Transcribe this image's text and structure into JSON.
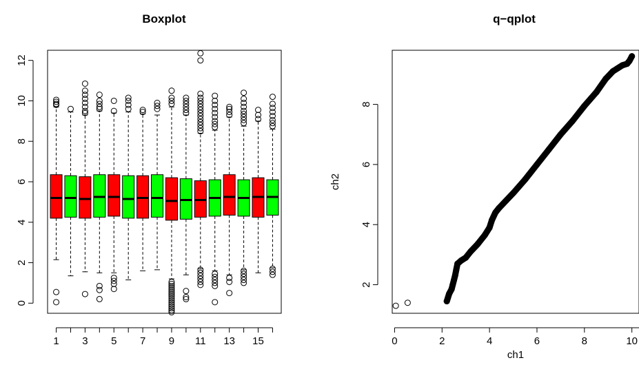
{
  "chart_data": [
    {
      "type": "box",
      "title": "Boxplot",
      "xlabel": "",
      "ylabel": "",
      "ylim": [
        -0.5,
        12.5
      ],
      "yticks": [
        0,
        2,
        4,
        6,
        8,
        10,
        12
      ],
      "xticks": [
        1,
        3,
        5,
        7,
        9,
        11,
        13,
        15
      ],
      "colors": [
        "#ff0000",
        "#00ff00"
      ],
      "boxes": [
        {
          "x": 1,
          "color": "#ff0000",
          "q1": 4.2,
          "median": 5.2,
          "q3": 6.35,
          "whisker_low": 2.15,
          "whisker_high": 9.7,
          "outliers": [
            0.55,
            0.05,
            9.8,
            9.95,
            10.05,
            9.85
          ]
        },
        {
          "x": 2,
          "color": "#00ff00",
          "q1": 4.25,
          "median": 5.2,
          "q3": 6.3,
          "whisker_low": 1.35,
          "whisker_high": 9.45,
          "outliers": [
            9.6
          ]
        },
        {
          "x": 3,
          "color": "#ff0000",
          "q1": 4.2,
          "median": 5.15,
          "q3": 6.25,
          "whisker_low": 1.55,
          "whisker_high": 9.3,
          "outliers": [
            0.45,
            9.4,
            9.5,
            9.7,
            9.9,
            10.1,
            10.3,
            10.5,
            10.85
          ]
        },
        {
          "x": 4,
          "color": "#00ff00",
          "q1": 4.25,
          "median": 5.25,
          "q3": 6.35,
          "whisker_low": 1.5,
          "whisker_high": 9.5,
          "outliers": [
            0.2,
            0.65,
            0.85,
            9.6,
            9.7,
            9.85,
            10.0,
            10.3
          ]
        },
        {
          "x": 5,
          "color": "#ff0000",
          "q1": 4.3,
          "median": 5.25,
          "q3": 6.35,
          "whisker_low": 1.5,
          "whisker_high": 9.4,
          "outliers": [
            0.7,
            0.95,
            1.1,
            1.25,
            9.5,
            10.0
          ]
        },
        {
          "x": 6,
          "color": "#00ff00",
          "q1": 4.2,
          "median": 5.15,
          "q3": 6.3,
          "whisker_low": 1.15,
          "whisker_high": 9.45,
          "outliers": [
            9.6,
            9.8,
            10.0,
            10.15
          ]
        },
        {
          "x": 7,
          "color": "#ff0000",
          "q1": 4.2,
          "median": 5.2,
          "q3": 6.3,
          "whisker_low": 1.6,
          "whisker_high": 9.35,
          "outliers": [
            9.45,
            9.55
          ]
        },
        {
          "x": 8,
          "color": "#00ff00",
          "q1": 4.25,
          "median": 5.2,
          "q3": 6.35,
          "whisker_low": 1.65,
          "whisker_high": 9.3,
          "outliers": [
            9.6,
            9.75,
            9.9
          ]
        },
        {
          "x": 9,
          "color": "#ff0000",
          "q1": 4.1,
          "median": 5.05,
          "q3": 6.2,
          "whisker_low": 1.2,
          "whisker_high": 9.7,
          "outliers": [
            -0.45,
            -0.35,
            -0.25,
            -0.15,
            -0.05,
            0.05,
            0.15,
            0.25,
            0.35,
            0.45,
            0.55,
            0.65,
            0.75,
            0.85,
            0.95,
            1.05,
            9.85,
            10.0,
            10.15,
            10.5
          ]
        },
        {
          "x": 10,
          "color": "#00ff00",
          "q1": 4.15,
          "median": 5.1,
          "q3": 6.15,
          "whisker_low": 1.4,
          "whisker_high": 9.3,
          "outliers": [
            0.2,
            0.3,
            0.6,
            9.4,
            9.55,
            9.7,
            9.85,
            10.0,
            10.15
          ]
        },
        {
          "x": 11,
          "color": "#ff0000",
          "q1": 4.25,
          "median": 5.1,
          "q3": 6.05,
          "whisker_low": 1.7,
          "whisker_high": 8.4,
          "outliers": [
            0.9,
            1.05,
            1.2,
            1.35,
            1.5,
            1.65,
            8.5,
            8.65,
            8.8,
            8.95,
            9.1,
            9.25,
            9.4,
            9.55,
            9.7,
            9.85,
            10.0,
            10.15,
            10.35,
            12.0,
            12.35
          ]
        },
        {
          "x": 12,
          "color": "#00ff00",
          "q1": 4.3,
          "median": 5.2,
          "q3": 6.1,
          "whisker_low": 1.6,
          "whisker_high": 8.55,
          "outliers": [
            0.05,
            0.85,
            1.0,
            1.15,
            1.3,
            1.45,
            8.7,
            8.85,
            9.0,
            9.2,
            9.4,
            9.6,
            9.8,
            10.0,
            10.25
          ]
        },
        {
          "x": 13,
          "color": "#ff0000",
          "q1": 4.35,
          "median": 5.25,
          "q3": 6.35,
          "whisker_low": 1.4,
          "whisker_high": 9.2,
          "outliers": [
            0.5,
            1.05,
            1.25,
            9.3,
            9.45,
            9.6,
            9.7
          ]
        },
        {
          "x": 14,
          "color": "#00ff00",
          "q1": 4.3,
          "median": 5.2,
          "q3": 6.1,
          "whisker_low": 1.65,
          "whisker_high": 8.75,
          "outliers": [
            1.0,
            1.15,
            1.3,
            1.45,
            1.6,
            8.9,
            9.05,
            9.2,
            9.35,
            9.5,
            9.7,
            9.9,
            10.1,
            10.4
          ]
        },
        {
          "x": 15,
          "color": "#ff0000",
          "q1": 4.25,
          "median": 5.25,
          "q3": 6.2,
          "whisker_low": 1.5,
          "whisker_high": 9.0,
          "outliers": [
            9.1,
            9.3,
            9.55
          ]
        },
        {
          "x": 16,
          "color": "#00ff00",
          "q1": 4.35,
          "median": 5.25,
          "q3": 6.1,
          "whisker_low": 1.75,
          "whisker_high": 8.6,
          "outliers": [
            1.4,
            1.55,
            1.7,
            8.75,
            8.9,
            9.05,
            9.25,
            9.45,
            9.65,
            9.85,
            10.2
          ]
        }
      ]
    },
    {
      "type": "scatter",
      "title": "q−qplot",
      "xlabel": "ch1",
      "ylabel": "ch2",
      "xlim": [
        -0.1,
        10.3
      ],
      "ylim": [
        1.05,
        9.8
      ],
      "xticks": [
        0,
        2,
        4,
        6,
        8,
        10
      ],
      "yticks": [
        2,
        4,
        6,
        8
      ],
      "x": [
        0.05,
        0.55,
        2.2,
        2.3,
        2.4,
        2.45,
        2.5,
        2.55,
        2.6,
        2.65,
        2.8,
        3.0,
        3.2,
        3.5,
        3.8,
        4.0,
        4.1,
        4.25,
        4.4,
        4.7,
        5.0,
        5.5,
        6.0,
        6.5,
        7.0,
        7.5,
        8.0,
        8.5,
        8.9,
        9.2,
        9.4,
        9.6,
        9.8,
        9.9,
        10.0
      ],
      "y": [
        1.3,
        1.4,
        1.45,
        1.7,
        1.85,
        2.0,
        2.15,
        2.3,
        2.5,
        2.7,
        2.8,
        2.9,
        3.1,
        3.35,
        3.65,
        3.9,
        4.15,
        4.4,
        4.55,
        4.8,
        5.05,
        5.5,
        6.0,
        6.5,
        7.0,
        7.45,
        7.95,
        8.4,
        8.85,
        9.1,
        9.2,
        9.3,
        9.35,
        9.45,
        9.6
      ]
    }
  ]
}
